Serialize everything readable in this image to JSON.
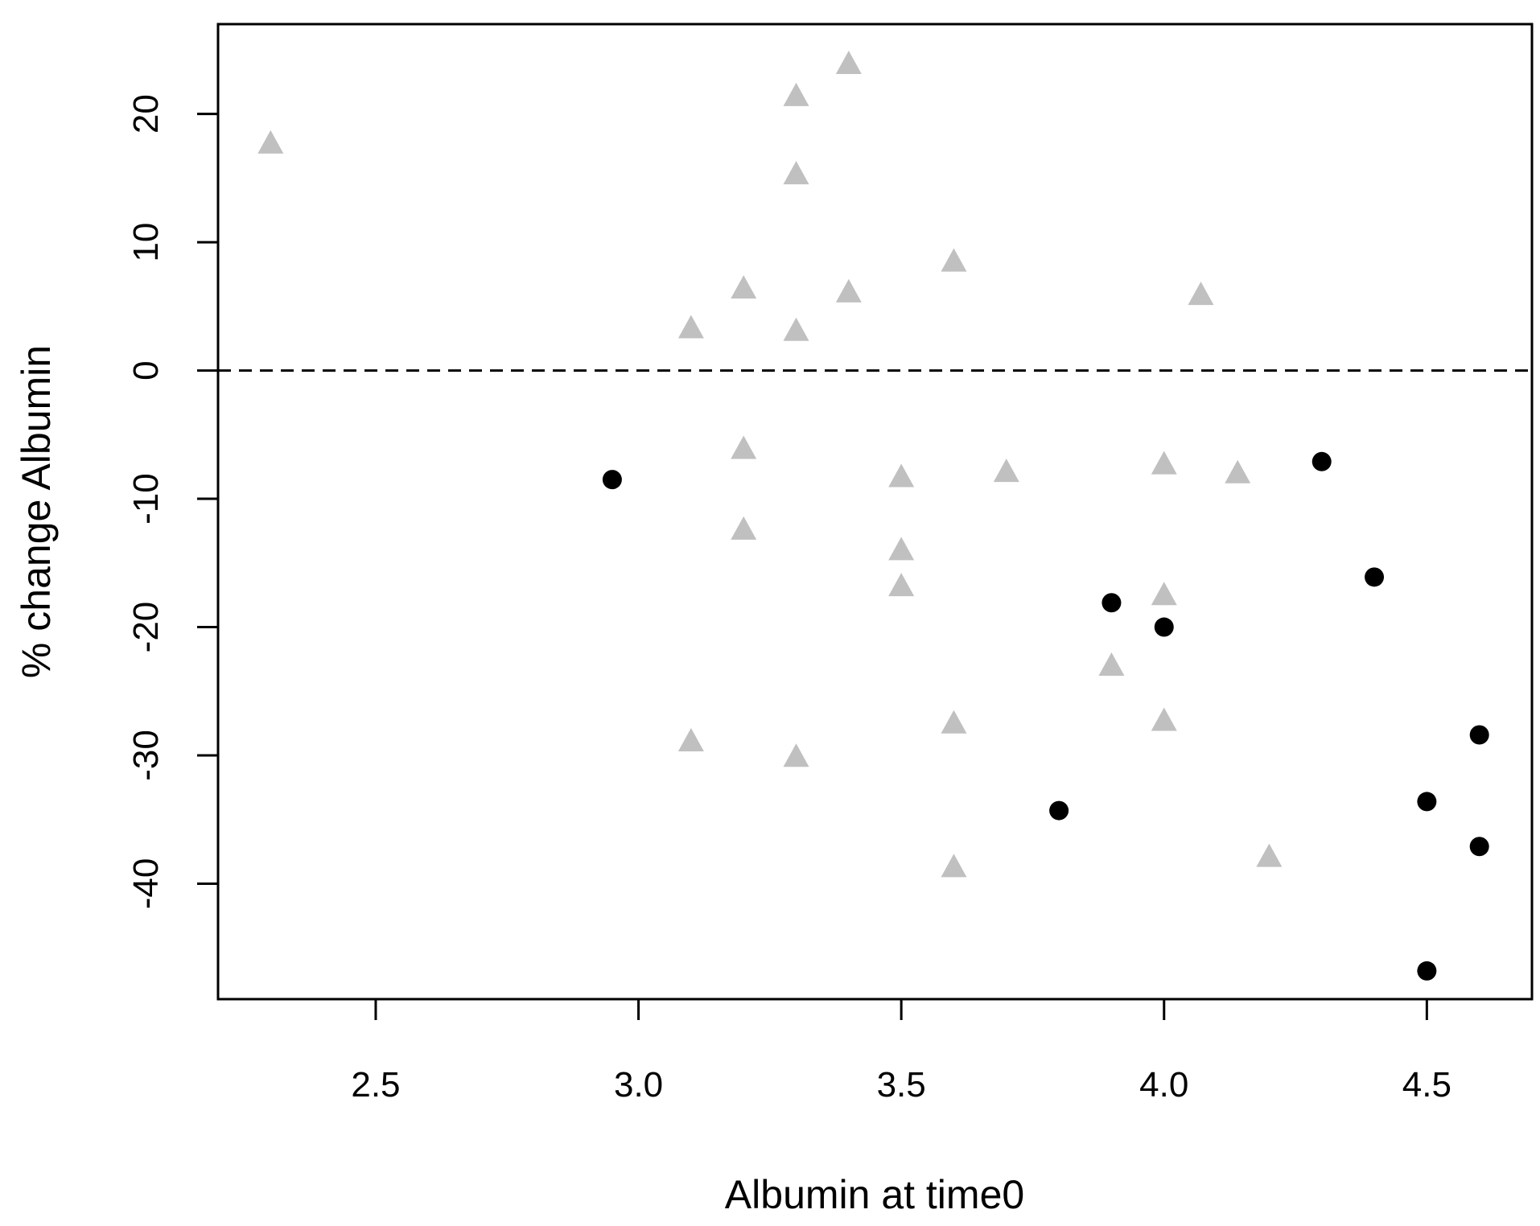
{
  "chart_data": {
    "type": "scatter",
    "xlabel": "Albumin at time0",
    "ylabel": "% change Albumin",
    "xlim": [
      2.2,
      4.7
    ],
    "ylim": [
      -49,
      27
    ],
    "x_ticks": [
      2.5,
      3.0,
      3.5,
      4.0,
      4.5
    ],
    "x_tick_labels": [
      "2.5",
      "3.0",
      "3.5",
      "4.0",
      "4.5"
    ],
    "y_ticks": [
      -40,
      -30,
      -20,
      -10,
      0,
      10,
      20
    ],
    "y_tick_labels": [
      "-40",
      "-30",
      "-20",
      "-10",
      "0",
      "10",
      "20"
    ],
    "reference_line": {
      "y": 0,
      "style": "dashed",
      "color": "#000000"
    },
    "grid": false,
    "series": [
      {
        "marker": "triangle",
        "color": "#c0c0c0",
        "points": [
          [
            2.3,
            17.6
          ],
          [
            3.1,
            3.2
          ],
          [
            3.1,
            -29.0
          ],
          [
            3.2,
            6.3
          ],
          [
            3.2,
            -6.2
          ],
          [
            3.2,
            -12.5
          ],
          [
            3.3,
            21.3
          ],
          [
            3.3,
            15.2
          ],
          [
            3.3,
            3.0
          ],
          [
            3.3,
            -30.2
          ],
          [
            3.4,
            23.8
          ],
          [
            3.4,
            6.0
          ],
          [
            3.5,
            -8.4
          ],
          [
            3.5,
            -14.1
          ],
          [
            3.5,
            -16.9
          ],
          [
            3.6,
            8.4
          ],
          [
            3.6,
            -27.6
          ],
          [
            3.6,
            -38.8
          ],
          [
            3.7,
            -8.0
          ],
          [
            3.9,
            -23.1
          ],
          [
            4.0,
            -7.4
          ],
          [
            4.0,
            -17.6
          ],
          [
            4.0,
            -27.4
          ],
          [
            4.07,
            5.8
          ],
          [
            4.14,
            -8.1
          ],
          [
            4.2,
            -38.0
          ]
        ]
      },
      {
        "marker": "circle",
        "color": "#000000",
        "points": [
          [
            2.95,
            -8.5
          ],
          [
            3.8,
            -34.3
          ],
          [
            3.9,
            -18.1
          ],
          [
            4.0,
            -20.0
          ],
          [
            4.3,
            -7.1
          ],
          [
            4.4,
            -16.1
          ],
          [
            4.5,
            -33.6
          ],
          [
            4.5,
            -46.8
          ],
          [
            4.6,
            -28.4
          ],
          [
            4.6,
            -37.1
          ]
        ]
      }
    ]
  }
}
